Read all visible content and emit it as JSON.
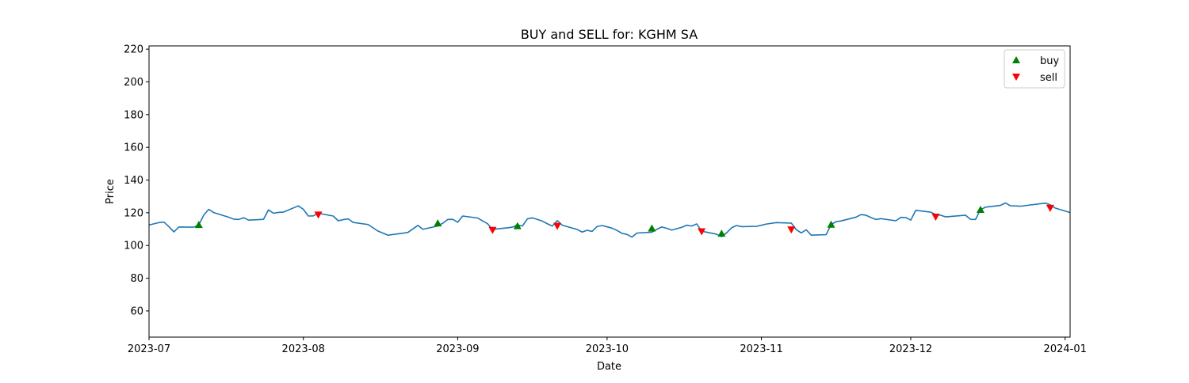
{
  "chart_data": {
    "type": "line",
    "title": "BUY and SELL for: KGHM SA",
    "xlabel": "Date",
    "ylabel": "Price",
    "xlim": [
      "2023-07-01",
      "2024-01-02"
    ],
    "ylim": [
      44,
      222
    ],
    "x_ticks": [
      "2023-07-01",
      "2023-08-01",
      "2023-09-01",
      "2023-10-01",
      "2023-11-01",
      "2023-12-01",
      "2024-01-01"
    ],
    "x_tick_labels": [
      "2023-07",
      "2023-08",
      "2023-09",
      "2023-10",
      "2023-11",
      "2023-12",
      "2024-01"
    ],
    "y_ticks": [
      60,
      80,
      100,
      120,
      140,
      160,
      180,
      200,
      220
    ],
    "y_tick_labels": [
      "60",
      "80",
      "100",
      "120",
      "140",
      "160",
      "180",
      "200",
      "220"
    ],
    "grid": false,
    "legend_position": "top-right",
    "colors": {
      "price": "#1f77b4",
      "buy": "#008000",
      "sell": "#ff0000"
    },
    "series": [
      {
        "type": "line",
        "points": [
          [
            "2023-07-01",
            112.5
          ],
          [
            "2023-07-03",
            114.0
          ],
          [
            "2023-07-04",
            114.3
          ],
          [
            "2023-07-05",
            111.5
          ],
          [
            "2023-07-06",
            108.3
          ],
          [
            "2023-07-07",
            111.3
          ],
          [
            "2023-07-10",
            111.2
          ],
          [
            "2023-07-11",
            112.6
          ],
          [
            "2023-07-12",
            118.6
          ],
          [
            "2023-07-13",
            122.1
          ],
          [
            "2023-07-14",
            120.1
          ],
          [
            "2023-07-17",
            117.3
          ],
          [
            "2023-07-18",
            116.1
          ],
          [
            "2023-07-19",
            115.9
          ],
          [
            "2023-07-20",
            117.0
          ],
          [
            "2023-07-21",
            115.5
          ],
          [
            "2023-07-24",
            116.0
          ],
          [
            "2023-07-25",
            121.8
          ],
          [
            "2023-07-26",
            119.7
          ],
          [
            "2023-07-27",
            120.2
          ],
          [
            "2023-07-28",
            120.4
          ],
          [
            "2023-07-31",
            124.2
          ],
          [
            "2023-08-01",
            122.1
          ],
          [
            "2023-08-02",
            118.0
          ],
          [
            "2023-08-03",
            118.1
          ],
          [
            "2023-08-04",
            119.7
          ],
          [
            "2023-08-07",
            118.0
          ],
          [
            "2023-08-08",
            115.1
          ],
          [
            "2023-08-09",
            115.8
          ],
          [
            "2023-08-10",
            116.3
          ],
          [
            "2023-08-11",
            114.1
          ],
          [
            "2023-08-14",
            112.8
          ],
          [
            "2023-08-16",
            108.8
          ],
          [
            "2023-08-18",
            106.3
          ],
          [
            "2023-08-21",
            107.5
          ],
          [
            "2023-08-22",
            108.0
          ],
          [
            "2023-08-23",
            110.1
          ],
          [
            "2023-08-24",
            112.3
          ],
          [
            "2023-08-25",
            109.9
          ],
          [
            "2023-08-28",
            111.9
          ],
          [
            "2023-08-29",
            113.6
          ],
          [
            "2023-08-30",
            115.9
          ],
          [
            "2023-08-31",
            116.0
          ],
          [
            "2023-09-01",
            114.2
          ],
          [
            "2023-09-02",
            118.0
          ],
          [
            "2023-09-05",
            116.8
          ],
          [
            "2023-09-06",
            115.0
          ],
          [
            "2023-09-07",
            113.3
          ],
          [
            "2023-09-08",
            109.8
          ],
          [
            "2023-09-11",
            110.8
          ],
          [
            "2023-09-12",
            111.2
          ],
          [
            "2023-09-13",
            112.6
          ],
          [
            "2023-09-14",
            111.9
          ],
          [
            "2023-09-15",
            116.3
          ],
          [
            "2023-09-16",
            116.9
          ],
          [
            "2023-09-18",
            114.9
          ],
          [
            "2023-09-19",
            113.3
          ],
          [
            "2023-09-20",
            111.9
          ],
          [
            "2023-09-21",
            115.2
          ],
          [
            "2023-09-22",
            112.4
          ],
          [
            "2023-09-25",
            109.8
          ],
          [
            "2023-09-26",
            108.2
          ],
          [
            "2023-09-27",
            109.3
          ],
          [
            "2023-09-28",
            108.6
          ],
          [
            "2023-09-29",
            111.6
          ],
          [
            "2023-09-30",
            112.2
          ],
          [
            "2023-10-02",
            110.6
          ],
          [
            "2023-10-03",
            109.2
          ],
          [
            "2023-10-04",
            107.4
          ],
          [
            "2023-10-05",
            106.8
          ],
          [
            "2023-10-06",
            105.1
          ],
          [
            "2023-10-07",
            107.6
          ],
          [
            "2023-10-10",
            108.1
          ],
          [
            "2023-10-11",
            109.9
          ],
          [
            "2023-10-12",
            111.3
          ],
          [
            "2023-10-13",
            110.5
          ],
          [
            "2023-10-14",
            109.4
          ],
          [
            "2023-10-16",
            111.1
          ],
          [
            "2023-10-17",
            112.4
          ],
          [
            "2023-10-18",
            111.9
          ],
          [
            "2023-10-19",
            113.2
          ],
          [
            "2023-10-20",
            108.7
          ],
          [
            "2023-10-23",
            106.9
          ],
          [
            "2023-10-24",
            105.4
          ],
          [
            "2023-10-25",
            107.7
          ],
          [
            "2023-10-26",
            110.8
          ],
          [
            "2023-10-27",
            112.2
          ],
          [
            "2023-10-28",
            111.5
          ],
          [
            "2023-10-31",
            111.7
          ],
          [
            "2023-11-02",
            113.1
          ],
          [
            "2023-11-04",
            114.0
          ],
          [
            "2023-11-07",
            113.7
          ],
          [
            "2023-11-08",
            109.7
          ],
          [
            "2023-11-09",
            107.7
          ],
          [
            "2023-11-10",
            109.6
          ],
          [
            "2023-11-11",
            106.3
          ],
          [
            "2023-11-14",
            106.6
          ],
          [
            "2023-11-15",
            112.8
          ],
          [
            "2023-11-16",
            114.6
          ],
          [
            "2023-11-17",
            115.0
          ],
          [
            "2023-11-20",
            117.3
          ],
          [
            "2023-11-21",
            118.9
          ],
          [
            "2023-11-22",
            118.5
          ],
          [
            "2023-11-23",
            117.1
          ],
          [
            "2023-11-24",
            115.9
          ],
          [
            "2023-11-25",
            116.4
          ],
          [
            "2023-11-28",
            115.1
          ],
          [
            "2023-11-29",
            117.2
          ],
          [
            "2023-11-30",
            117.1
          ],
          [
            "2023-12-01",
            115.5
          ],
          [
            "2023-12-02",
            121.5
          ],
          [
            "2023-12-05",
            120.4
          ],
          [
            "2023-12-06",
            118.9
          ],
          [
            "2023-12-07",
            118.5
          ],
          [
            "2023-12-08",
            117.5
          ],
          [
            "2023-12-12",
            118.5
          ],
          [
            "2023-12-13",
            116.0
          ],
          [
            "2023-12-14",
            115.9
          ],
          [
            "2023-12-15",
            121.9
          ],
          [
            "2023-12-16",
            123.4
          ],
          [
            "2023-12-19",
            124.5
          ],
          [
            "2023-12-20",
            126.0
          ],
          [
            "2023-12-21",
            124.3
          ],
          [
            "2023-12-23",
            124.0
          ],
          [
            "2023-12-28",
            125.9
          ],
          [
            "2023-12-29",
            124.9
          ],
          [
            "2023-12-30",
            122.9
          ],
          [
            "2024-01-02",
            120.1
          ]
        ]
      },
      {
        "name": "buy",
        "type": "scatter",
        "marker": "triangle-up",
        "points": [
          [
            "2023-07-11",
            112.6
          ],
          [
            "2023-08-28",
            113.6
          ],
          [
            "2023-09-13",
            111.9
          ],
          [
            "2023-10-10",
            110.5
          ],
          [
            "2023-10-24",
            107.3
          ],
          [
            "2023-11-15",
            112.8
          ],
          [
            "2023-12-15",
            121.9
          ]
        ]
      },
      {
        "name": "sell",
        "type": "scatter",
        "marker": "triangle-down",
        "points": [
          [
            "2023-08-04",
            118.8
          ],
          [
            "2023-09-08",
            109.4
          ],
          [
            "2023-09-21",
            111.9
          ],
          [
            "2023-10-20",
            108.6
          ],
          [
            "2023-11-07",
            109.7
          ],
          [
            "2023-12-06",
            117.5
          ],
          [
            "2023-12-29",
            122.9
          ]
        ]
      }
    ]
  }
}
